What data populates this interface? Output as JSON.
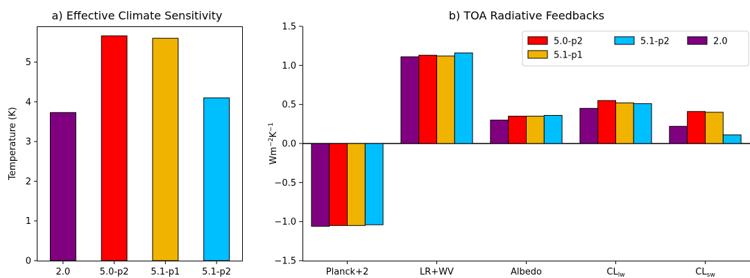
{
  "chart_data": [
    {
      "type": "bar",
      "title": "a) Effective Climate Sensitivity",
      "xlabel": "",
      "ylabel": "Temperature (K)",
      "ylim": [
        0,
        5.9
      ],
      "yticks": [
        0,
        1,
        2,
        3,
        4,
        5
      ],
      "categories": [
        "2.0",
        "5.0-p2",
        "5.1-p1",
        "5.1-p2"
      ],
      "values": [
        3.73,
        5.66,
        5.6,
        4.1
      ],
      "colors": [
        "#800080",
        "#ff0000",
        "#f0b400",
        "#00bfff"
      ],
      "grid": false
    },
    {
      "type": "bar",
      "title": "b) TOA Radiative Feedbacks",
      "xlabel": "",
      "ylabel": "Wm⁻²K⁻¹",
      "ylim": [
        -1.5,
        1.5
      ],
      "yticks": [
        -1.5,
        -1.0,
        -0.5,
        0.0,
        0.5,
        1.0,
        1.5
      ],
      "ytick_labels": [
        "−1.5",
        "−1.0",
        "−0.5",
        "0.0",
        "0.5",
        "1.0",
        "1.5"
      ],
      "categories": [
        "Planck+2",
        "LR+WV",
        "Albedo",
        "CLlw",
        "CLsw"
      ],
      "category_labels": [
        {
          "main": "Planck+2",
          "sub": ""
        },
        {
          "main": "LR+WV",
          "sub": ""
        },
        {
          "main": "Albedo",
          "sub": ""
        },
        {
          "main": "CL",
          "sub": "lw"
        },
        {
          "main": "CL",
          "sub": "sw"
        }
      ],
      "series": [
        {
          "name": "2.0",
          "color": "#800080",
          "values": [
            -1.06,
            1.11,
            0.3,
            0.45,
            0.22
          ]
        },
        {
          "name": "5.0-p2",
          "color": "#ff0000",
          "values": [
            -1.05,
            1.13,
            0.35,
            0.55,
            0.41
          ]
        },
        {
          "name": "5.1-p1",
          "color": "#f0b400",
          "values": [
            -1.05,
            1.12,
            0.35,
            0.52,
            0.4
          ]
        },
        {
          "name": "5.1-p2",
          "color": "#00bfff",
          "values": [
            -1.04,
            1.16,
            0.36,
            0.51,
            0.11
          ]
        }
      ],
      "legend": {
        "placement": "top-right",
        "entries": [
          "5.0-p2",
          "5.1-p2",
          "2.0",
          "5.1-p1"
        ]
      },
      "grid": false,
      "zero_line": true
    }
  ]
}
